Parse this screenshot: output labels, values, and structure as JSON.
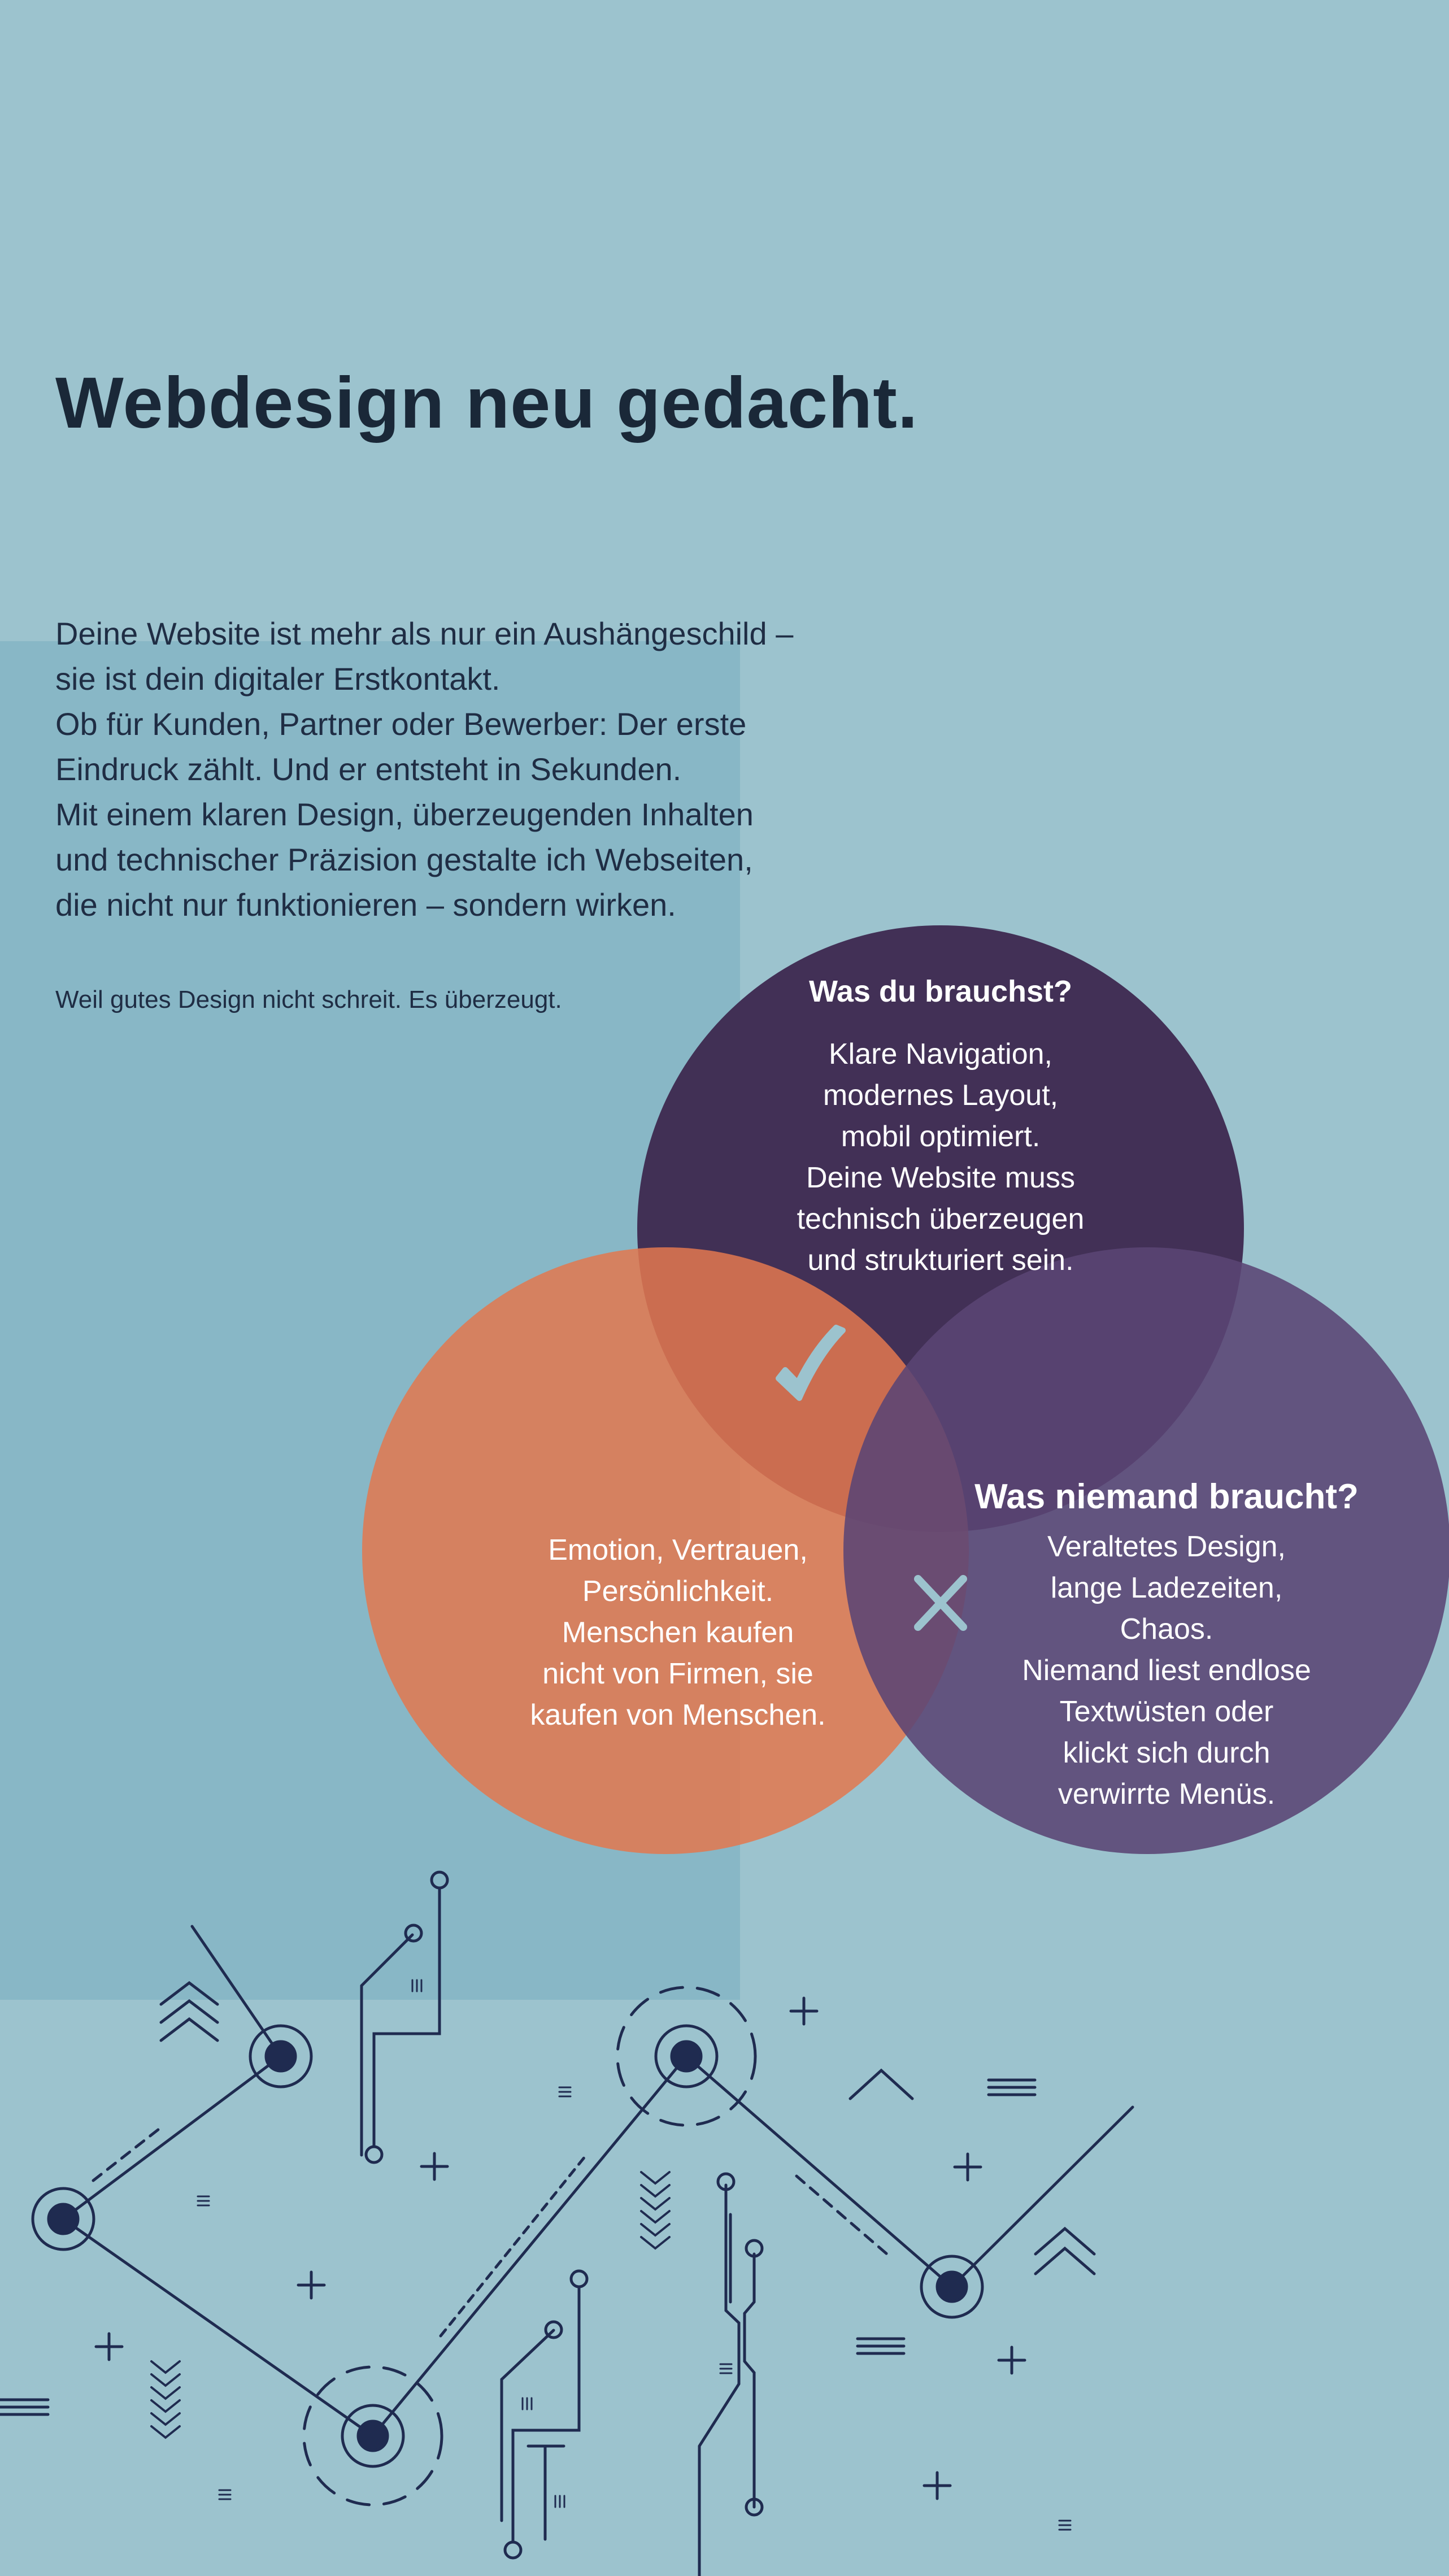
{
  "colors": {
    "background": "#9cc3ce",
    "panel": "#88b7c6",
    "heading": "#1a2838",
    "circle_top": "#3f2b52",
    "circle_left": "#de7a58",
    "circle_right": "#5e4a78",
    "circuit_lines": "#1f2b50",
    "mark_light": "#9cc3ce"
  },
  "hero": {
    "title": "Webdesign neu gedacht.",
    "intro_lines": [
      "Deine Website ist mehr als nur ein Aushängeschild –",
      "sie ist dein digitaler Erstkontakt.",
      "Ob für Kunden, Partner oder Bewerber: Der erste",
      "Eindruck zählt. Und er entsteht in Sekunden.",
      "Mit einem klaren Design, überzeugenden Inhalten",
      "und technischer Präzision gestalte ich Webseiten,",
      "die nicht nur funktionieren – sondern wirken."
    ],
    "tagline": "Weil gutes Design nicht schreit. Es überzeugt."
  },
  "venn": {
    "top": {
      "heading": "Was du brauchst?",
      "lines": [
        "Klare Navigation,",
        "modernes Layout,",
        "mobil optimiert.",
        "Deine Website muss",
        "technisch überzeugen",
        "und strukturiert sein."
      ]
    },
    "left": {
      "lines": [
        "Emotion, Vertrauen,",
        "Persönlichkeit.",
        "Menschen kaufen",
        "nicht von Firmen, sie",
        "kaufen von Menschen."
      ]
    },
    "right": {
      "heading": "Was niemand braucht?",
      "lines": [
        "Veraltetes Design,",
        "lange Ladezeiten,",
        "Chaos.",
        "Niemand liest endlose",
        "Textwüsten oder",
        "klickt sich durch",
        "verwirrte Menüs."
      ]
    },
    "check_icon": "checkmark-icon",
    "cross_icon": "cross-icon"
  },
  "decoration": {
    "circuit_icon": "circuit-network-illustration"
  }
}
